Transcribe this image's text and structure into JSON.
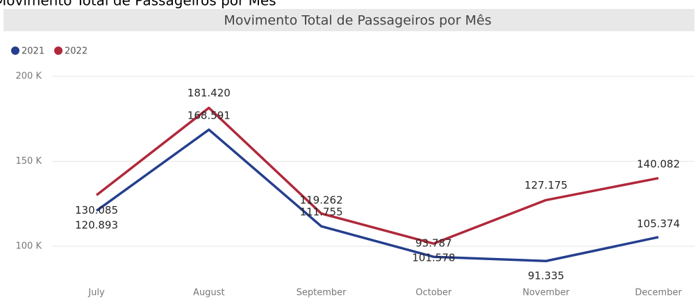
{
  "page_title": "Movimento Total de Passageiros por Mês",
  "chart_data": {
    "type": "line",
    "title": "Movimento Total de Passageiros por Mês",
    "categories": [
      "July",
      "August",
      "September",
      "October",
      "November",
      "December"
    ],
    "series": [
      {
        "name": "2021",
        "color": "#253f8e",
        "values": [
          120893,
          168591,
          111755,
          93787,
          91335,
          105374
        ],
        "value_labels": [
          "120.893",
          "168.591",
          "111.755",
          "93.787",
          "91.335",
          "105.374"
        ]
      },
      {
        "name": "2022",
        "color": "#b0283a",
        "values": [
          130085,
          181420,
          119262,
          101578,
          127175,
          140082
        ],
        "value_labels": [
          "130.085",
          "181.420",
          "119.262",
          "101.578",
          "127.175",
          "140.082"
        ]
      }
    ],
    "ylim": [
      80000,
      200000
    ],
    "yticks": [
      {
        "value": 100000,
        "label": "100 K"
      },
      {
        "value": 150000,
        "label": "150 K"
      },
      {
        "value": 200000,
        "label": "200 K"
      }
    ],
    "grid": true,
    "legend": "top-left"
  }
}
